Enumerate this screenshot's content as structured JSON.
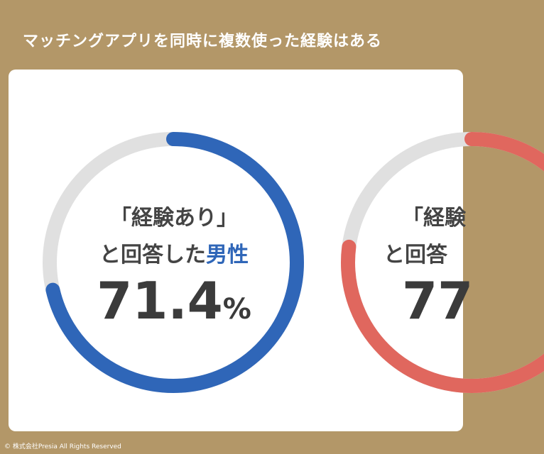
{
  "title": "マッチングアプリを同時に複数使った経験はある",
  "copyright": "© 株式会社Presia All Rights Reserved",
  "colors": {
    "background": "#b39768",
    "track": "#e0e0e0",
    "male": "#2f66b8",
    "female": "#e0675e"
  },
  "chart_data": [
    {
      "type": "pie",
      "label_line1": "「経験あり」",
      "label_line2_prefix": "と回答した",
      "label_line2_highlight": "男性",
      "value": 71.4,
      "value_text": "71.4",
      "unit": "%"
    },
    {
      "type": "pie",
      "label_line1": "「経験",
      "label_line2_prefix": "と回答",
      "value": 77,
      "value_text": "77"
    }
  ]
}
